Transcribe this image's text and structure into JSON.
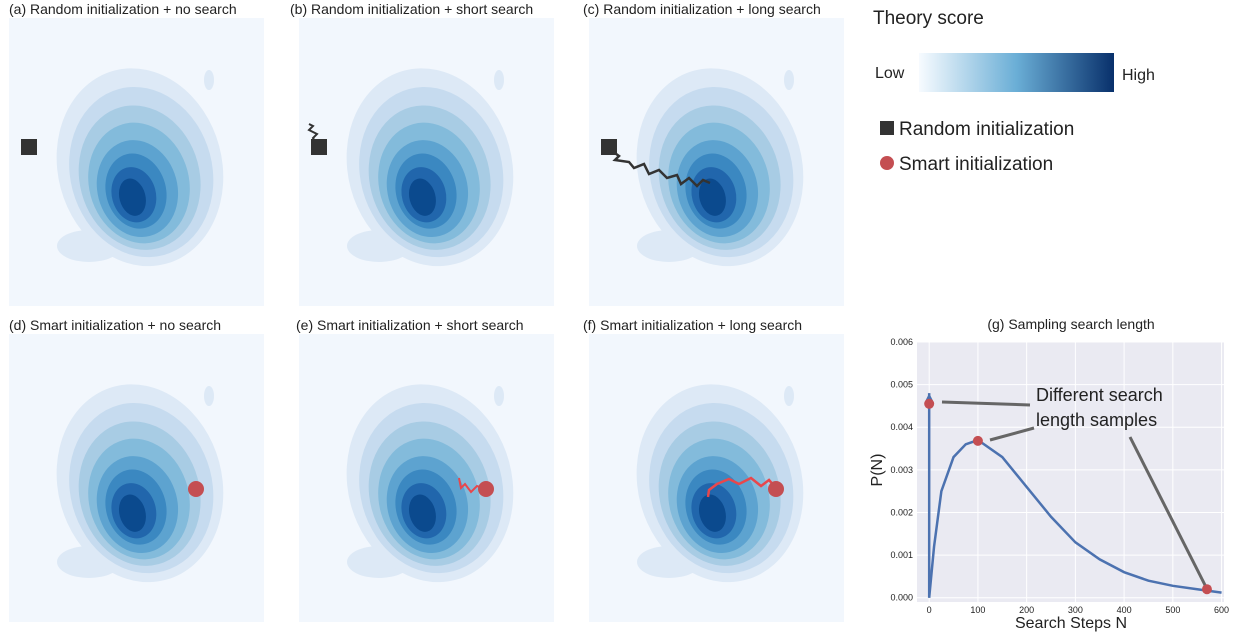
{
  "panels": [
    {
      "title": "(a) Random initialization + no search"
    },
    {
      "title": "(b) Random initialization + short search"
    },
    {
      "title": "(c) Random initialization + long search"
    },
    {
      "title": "(d) Smart initialization + no search"
    },
    {
      "title": "(e) Smart initialization + short search"
    },
    {
      "title": "(f) Smart initialization + long search"
    }
  ],
  "legend": {
    "title": "Theory score",
    "low": "Low",
    "high": "High",
    "items": [
      "Random initialization",
      "Smart initialization"
    ]
  },
  "chart_data": {
    "type": "line",
    "title": "(g) Sampling search length",
    "xlabel": "Search Steps N",
    "ylabel": "P(N)",
    "annotation": [
      "Different search",
      "length samples"
    ],
    "xlim": [
      -25,
      605
    ],
    "ylim": [
      -0.0001,
      0.006
    ],
    "xticks": [
      0,
      100,
      200,
      300,
      400,
      500,
      600
    ],
    "yticks": [
      {
        "value": 0,
        "label": "0.000"
      },
      {
        "value": 0.001,
        "label": "0.001"
      },
      {
        "value": 0.002,
        "label": "0.002"
      },
      {
        "value": 0.003,
        "label": "0.003"
      },
      {
        "value": 0.004,
        "label": "0.004"
      },
      {
        "value": 0.005,
        "label": "0.005"
      },
      {
        "value": 0.006,
        "label": "0.006"
      }
    ],
    "grid": true,
    "series": [
      {
        "style": "line",
        "color": "#4c72b0",
        "x": [
          0,
          10,
          25,
          50,
          75,
          100,
          150,
          200,
          250,
          300,
          350,
          400,
          450,
          500,
          550,
          600
        ],
        "values": [
          0,
          0.0012,
          0.0025,
          0.0033,
          0.0036,
          0.0037,
          0.0033,
          0.0026,
          0.0019,
          0.0013,
          0.0009,
          0.0006,
          0.0004,
          0.00028,
          0.0002,
          0.00012
        ]
      },
      {
        "style": "arrow",
        "color": "#4c72b0",
        "x": [
          0,
          0
        ],
        "values": [
          0,
          0.0048
        ]
      },
      {
        "style": "scatter",
        "color": "#c44e52",
        "x": [
          0,
          100,
          570
        ],
        "values": [
          0.00455,
          0.00368,
          0.0002
        ]
      }
    ]
  }
}
